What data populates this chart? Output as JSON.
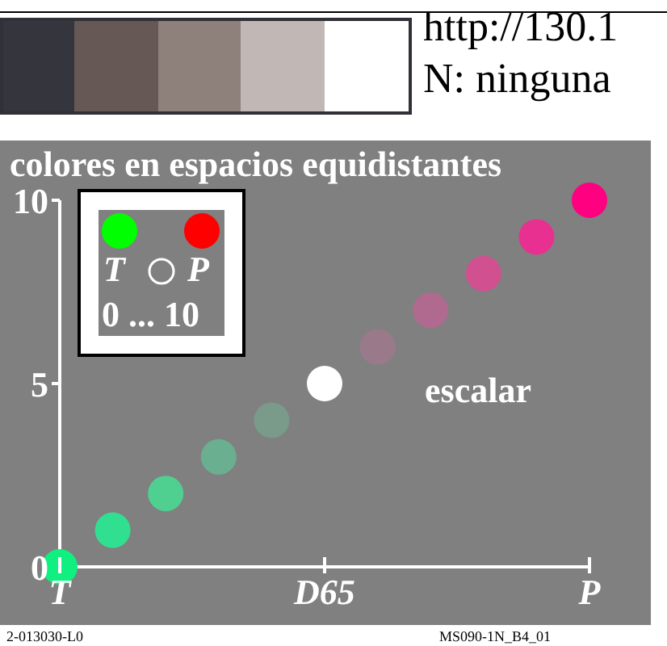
{
  "chart_data": {
    "type": "scatter",
    "title": "colores en espacios equidistantes",
    "categories": [
      "T",
      null,
      null,
      null,
      null,
      "D65",
      null,
      null,
      null,
      null,
      "P"
    ],
    "values": [
      0,
      1,
      2,
      3,
      4,
      5,
      6,
      7,
      8,
      9,
      10
    ],
    "colors": [
      "#10f080",
      "#30e090",
      "#50d090",
      "#6ab090",
      "#7a9a8a",
      "#ffffff",
      "#9a7a8a",
      "#b06a90",
      "#d05090",
      "#e83090",
      "#ff0080"
    ],
    "ylim": [
      0,
      10
    ],
    "yticks": [
      0,
      5,
      10
    ],
    "grid": false,
    "marker": "circle",
    "annotations": [
      "http://130.1",
      "N: ninguna",
      "T",
      "P",
      "0 ... 10",
      "escalar",
      "2-013030-L0",
      "MS090-1N_B4_01"
    ]
  }
}
